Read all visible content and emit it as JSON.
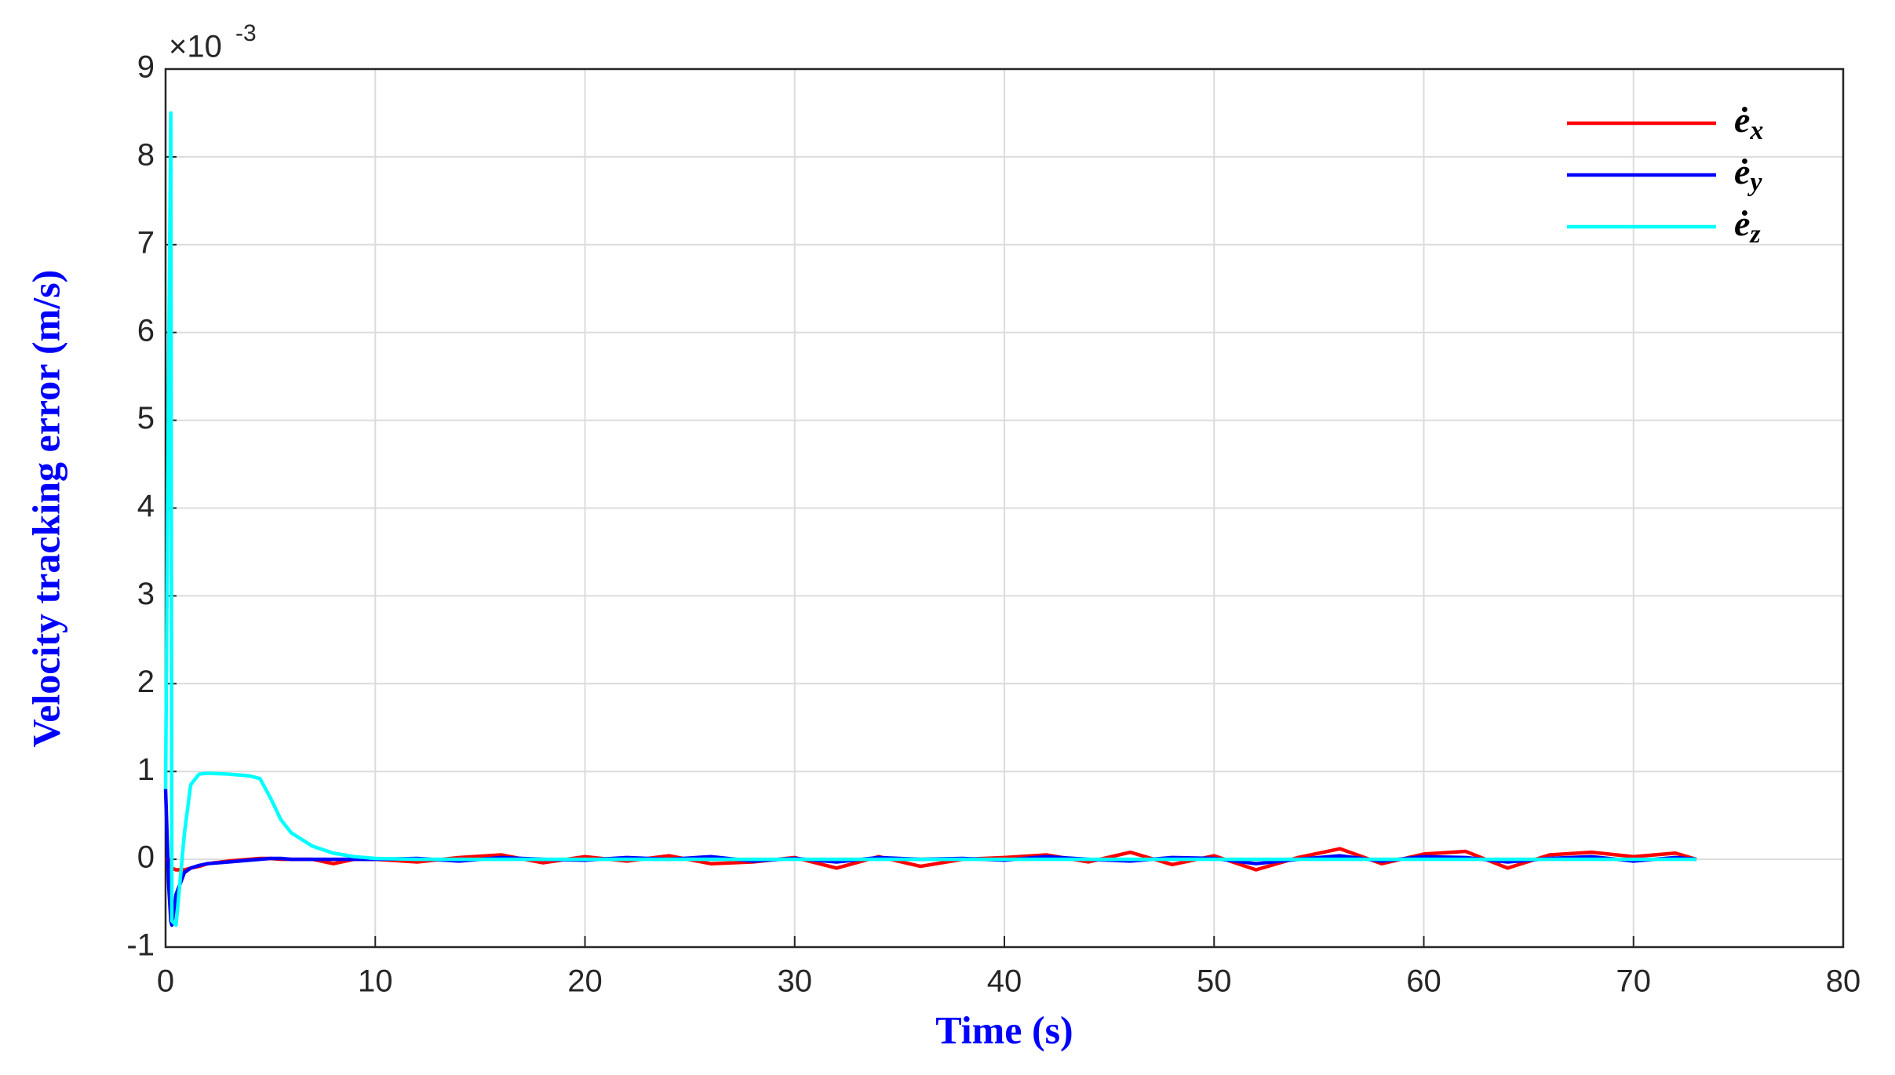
{
  "chart_data": {
    "type": "line",
    "xlabel": "Time (s)",
    "ylabel": "Velocity tracking error (m/s)",
    "y_multiplier": "×10",
    "y_multiplier_exponent": "-3",
    "x": [
      0,
      0.15,
      0.25,
      0.3,
      0.5,
      0.9,
      1.2,
      1.6,
      2,
      3,
      4,
      4.5,
      5,
      5.5,
      6,
      7,
      8,
      9,
      10,
      12,
      14,
      16,
      18,
      20,
      22,
      24,
      26,
      28,
      30,
      32,
      34,
      36,
      38,
      40,
      42,
      44,
      46,
      48,
      50,
      52,
      54,
      56,
      58,
      60,
      62,
      64,
      66,
      68,
      70,
      72,
      73
    ],
    "series": [
      {
        "name": "ė_x",
        "color": "#ff0000",
        "values": [
          0,
          0,
          -0.05,
          -0.1,
          -0.12,
          -0.12,
          -0.1,
          -0.08,
          -0.05,
          -0.02,
          0,
          0.01,
          0.01,
          0,
          0,
          0,
          -0.05,
          0,
          0,
          -0.03,
          0.02,
          0.05,
          -0.04,
          0.03,
          -0.02,
          0.04,
          -0.05,
          -0.03,
          0.02,
          -0.1,
          0.03,
          -0.08,
          0,
          0.02,
          0.05,
          -0.03,
          0.08,
          -0.06,
          0.04,
          -0.12,
          0.02,
          0.12,
          -0.05,
          0.06,
          0.09,
          -0.1,
          0.05,
          0.08,
          0.03,
          0.07,
          0
        ]
      },
      {
        "name": "ė_y",
        "color": "#0000ff",
        "values": [
          0.8,
          -0.3,
          -0.7,
          -0.75,
          -0.4,
          -0.15,
          -0.1,
          -0.07,
          -0.05,
          -0.03,
          -0.01,
          0,
          0.01,
          0.01,
          0,
          0,
          0,
          0,
          0,
          0.01,
          -0.02,
          0.02,
          0,
          -0.01,
          0.02,
          0,
          0.03,
          -0.02,
          0.01,
          -0.03,
          0.02,
          0,
          0.01,
          -0.01,
          0.03,
          0,
          -0.02,
          0.02,
          0.01,
          -0.05,
          0,
          0.04,
          -0.02,
          0.03,
          0.02,
          -0.03,
          0.01,
          0.03,
          -0.02,
          0.02,
          0
        ]
      },
      {
        "name": "ė_z",
        "color": "#00ffff",
        "values": [
          0.8,
          5.7,
          8.5,
          -0.7,
          -0.75,
          0.3,
          0.85,
          0.97,
          0.98,
          0.97,
          0.95,
          0.92,
          0.7,
          0.45,
          0.3,
          0.15,
          0.07,
          0.03,
          0.01,
          0,
          0,
          0,
          0,
          0,
          0,
          0,
          0,
          0,
          0,
          0,
          0,
          0,
          0,
          0,
          0,
          0,
          0,
          0,
          0,
          0,
          0,
          0,
          0,
          0,
          0,
          0,
          0,
          0,
          0,
          0,
          0
        ]
      }
    ],
    "xlim": [
      0,
      80
    ],
    "xticks": [
      0,
      10,
      20,
      30,
      40,
      50,
      60,
      70,
      80
    ],
    "ylim": [
      -1,
      9
    ],
    "yticks": [
      -1,
      0,
      1,
      2,
      3,
      4,
      5,
      6,
      7,
      8,
      9
    ],
    "grid": true,
    "legend": "upper right"
  }
}
